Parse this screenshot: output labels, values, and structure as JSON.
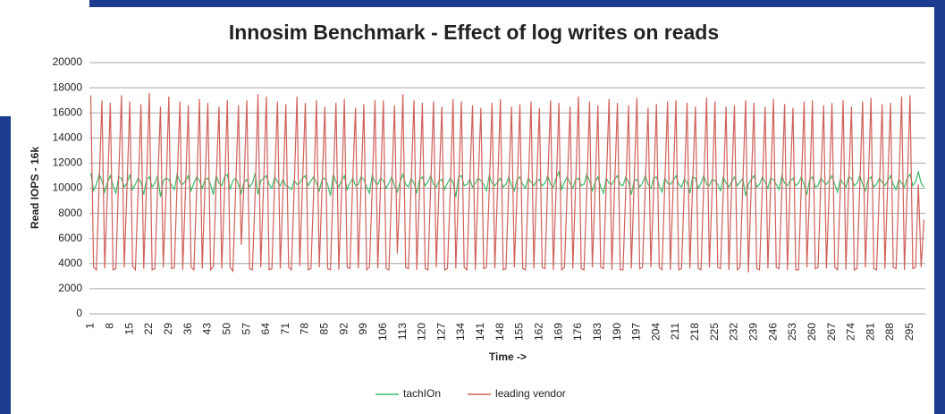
{
  "chart_data": {
    "type": "line",
    "title": "Innosim Benchmark - Effect of log writes on reads",
    "x_label": "Time ->",
    "y_label": "Read IOPS - 16k",
    "ylim": [
      0,
      20000
    ],
    "yticks": [
      0,
      2000,
      4000,
      6000,
      8000,
      10000,
      12000,
      14000,
      16000,
      18000,
      20000
    ],
    "grid": true,
    "legend": "bottom",
    "categories": [
      "1",
      null,
      null,
      null,
      null,
      null,
      null,
      "8",
      null,
      null,
      null,
      null,
      null,
      null,
      "15",
      null,
      null,
      null,
      null,
      null,
      null,
      "22",
      null,
      null,
      null,
      null,
      null,
      null,
      "29",
      null,
      null,
      null,
      null,
      null,
      null,
      "36",
      null,
      null,
      null,
      null,
      null,
      null,
      "43",
      null,
      null,
      null,
      null,
      null,
      null,
      "50",
      null,
      null,
      null,
      null,
      null,
      null,
      "57",
      null,
      null,
      null,
      null,
      null,
      null,
      "64",
      null,
      null,
      null,
      null,
      null,
      null,
      "71",
      null,
      null,
      null,
      null,
      null,
      null,
      "78",
      null,
      null,
      null,
      null,
      null,
      null,
      "85",
      null,
      null,
      null,
      null,
      null,
      null,
      "92",
      null,
      null,
      null,
      null,
      null,
      null,
      "99",
      null,
      null,
      null,
      null,
      null,
      null,
      "106",
      null,
      null,
      null,
      null,
      null,
      null,
      "113",
      null,
      null,
      null,
      null,
      null,
      null,
      "120",
      null,
      null,
      null,
      null,
      null,
      null,
      "127",
      null,
      null,
      null,
      null,
      null,
      null,
      "134",
      null,
      null,
      null,
      null,
      null,
      null,
      "141",
      null,
      null,
      null,
      null,
      null,
      null,
      "148",
      null,
      null,
      null,
      null,
      null,
      null,
      "155",
      null,
      null,
      null,
      null,
      null,
      null,
      "162",
      null,
      null,
      null,
      null,
      null,
      null,
      "169",
      null,
      null,
      null,
      null,
      null,
      null,
      "176",
      null,
      null,
      null,
      null,
      null,
      null,
      "183",
      null,
      null,
      null,
      null,
      null,
      null,
      "190",
      null,
      null,
      null,
      null,
      null,
      null,
      "197",
      null,
      null,
      null,
      null,
      null,
      null,
      "204",
      null,
      null,
      null,
      null,
      null,
      null,
      "211",
      null,
      null,
      null,
      null,
      null,
      null,
      "218",
      null,
      null,
      null,
      null,
      null,
      null,
      "225",
      null,
      null,
      null,
      null,
      null,
      null,
      "232",
      null,
      null,
      null,
      null,
      null,
      null,
      "239",
      null,
      null,
      null,
      null,
      null,
      null,
      "246",
      null,
      null,
      null,
      null,
      null,
      null,
      "253",
      null,
      null,
      null,
      null,
      null,
      null,
      "260",
      null,
      null,
      null,
      null,
      null,
      null,
      "267",
      null,
      null,
      null,
      null,
      null,
      null,
      "274",
      null,
      null,
      null,
      null,
      null,
      null,
      "281",
      null,
      null,
      null,
      null,
      null,
      null,
      "288",
      null,
      null,
      null,
      null,
      null,
      null,
      "295",
      null,
      null,
      null,
      null,
      null
    ],
    "series": [
      {
        "name": "tachIOn",
        "color": "#3dbb6a",
        "values": [
          11200,
          9800,
          10300,
          11100,
          10600,
          9700,
          10500,
          11000,
          10200,
          9600,
          10900,
          10800,
          10100,
          10400,
          11100,
          9900,
          10300,
          10800,
          10500,
          9500,
          10700,
          10900,
          10100,
          10400,
          11000,
          9300,
          10600,
          10800,
          10700,
          10200,
          9900,
          11100,
          10500,
          10300,
          10600,
          11000,
          9800,
          10400,
          10900,
          10600,
          10000,
          10700,
          10800,
          10300,
          9500,
          11000,
          10400,
          10200,
          10900,
          11100,
          9900,
          10600,
          10800,
          10300,
          9600,
          10500,
          10700,
          10100,
          10400,
          11200,
          9500,
          10600,
          10800,
          11000,
          10300,
          10000,
          10900,
          10500,
          10200,
          10700,
          10200,
          10100,
          9900,
          10600,
          10300,
          10400,
          10800,
          11000,
          10200,
          10600,
          10900,
          10400,
          9800,
          10700,
          10800,
          10300,
          9400,
          11100,
          10500,
          10100,
          10600,
          11000,
          9900,
          10400,
          10800,
          10200,
          10300,
          10900,
          10700,
          10100,
          9600,
          11000,
          10500,
          10300,
          10800,
          10600,
          10000,
          10400,
          10900,
          10200,
          9700,
          10500,
          11100,
          10300,
          10100,
          10800,
          10400,
          9600,
          10700,
          10900,
          10200,
          10500,
          11000,
          10300,
          10100,
          10600,
          10700,
          9900,
          10400,
          10800,
          10500,
          9300,
          10900,
          11000,
          10200,
          10300,
          10700,
          10100,
          10400,
          10800,
          10600,
          10300,
          9800,
          11000,
          10400,
          10200,
          10500,
          10800,
          10100,
          10300,
          10900,
          10200,
          9800,
          10700,
          10900,
          10300,
          10000,
          10800,
          10500,
          10200,
          10600,
          10700,
          10200,
          10400,
          11000,
          10300,
          10100,
          10800,
          11300,
          9900,
          10500,
          10900,
          10400,
          10000,
          10700,
          10800,
          10200,
          10300,
          11100,
          10600,
          9800,
          10500,
          10900,
          10100,
          9600,
          10800,
          10400,
          10300,
          10700,
          11000,
          10300,
          10200,
          10900,
          10500,
          9500,
          10600,
          10700,
          10100,
          10400,
          11000,
          10300,
          10000,
          10800,
          10900,
          10200,
          9700,
          10800,
          10400,
          10300,
          10600,
          11000,
          10300,
          10100,
          10700,
          10500,
          9600,
          10900,
          10800,
          10000,
          10400,
          11000,
          10300,
          10200,
          10700,
          10600,
          10300,
          9800,
          10900,
          10400,
          10100,
          10500,
          10900,
          10200,
          10500,
          10800,
          9400,
          10300,
          10700,
          11000,
          10100,
          10300,
          10900,
          10500,
          10000,
          10800,
          10700,
          10300,
          9900,
          11000,
          10400,
          10200,
          10600,
          10800,
          10200,
          10400,
          10900,
          10300,
          9500,
          10700,
          10900,
          10100,
          10200,
          10800,
          10500,
          10300,
          10600,
          11000,
          10300,
          9700,
          10700,
          10400,
          10100,
          10900,
          10800,
          10200,
          10400,
          11000,
          10300,
          9800,
          10700,
          10900,
          10100,
          10300,
          10800,
          10500,
          10200,
          10600,
          11000,
          10300,
          9900,
          10700,
          10400,
          10100,
          10800,
          11100,
          10200,
          10500,
          11300,
          10400,
          10100
        ]
      },
      {
        "name": "leading vendor",
        "color": "#d0605a",
        "values": [
          17400,
          3700,
          3500,
          10300,
          17000,
          3600,
          9900,
          16800,
          3500,
          3600,
          10800,
          17400,
          3700,
          10100,
          16900,
          3800,
          3500,
          9800,
          16700,
          3600,
          10400,
          17600,
          3500,
          3600,
          10200,
          16500,
          3700,
          9700,
          17300,
          3600,
          3700,
          10600,
          16900,
          3500,
          10000,
          16600,
          3700,
          3500,
          9900,
          17100,
          3600,
          10300,
          16800,
          3500,
          3800,
          10500,
          16500,
          3600,
          9800,
          17000,
          3700,
          3400,
          10100,
          16600,
          5500,
          10400,
          17000,
          3600,
          3500,
          9600,
          17500,
          3700,
          10200,
          17300,
          3500,
          3600,
          10700,
          16900,
          3600,
          9900,
          16700,
          3700,
          3500,
          10000,
          17300,
          3800,
          10500,
          16800,
          3500,
          3600,
          9800,
          17000,
          3700,
          10100,
          16500,
          3600,
          3500,
          10300,
          16800,
          3500,
          9700,
          17100,
          3700,
          3600,
          10600,
          16400,
          3600,
          10200,
          16700,
          3500,
          3700,
          9900,
          17000,
          3600,
          10400,
          17000,
          3600,
          3500,
          10100,
          16600,
          4800,
          10000,
          17500,
          3700,
          3600,
          10500,
          17000,
          3500,
          9800,
          16800,
          3600,
          3500,
          10200,
          16900,
          3700,
          10300,
          16500,
          3500,
          3600,
          9700,
          17100,
          3600,
          10000,
          16900,
          3700,
          3500,
          10400,
          16600,
          3500,
          10200,
          16400,
          3600,
          3700,
          9900,
          16800,
          3600,
          10100,
          17100,
          3500,
          3600,
          10300,
          16500,
          3700,
          9800,
          16700,
          3600,
          3500,
          10000,
          16900,
          3600,
          10400,
          16400,
          3700,
          3600,
          10600,
          17000,
          3500,
          9900,
          16800,
          3500,
          3700,
          10100,
          16500,
          3600,
          10300,
          17300,
          3600,
          3500,
          9800,
          16900,
          3700,
          10000,
          16600,
          3700,
          3600,
          10400,
          17100,
          3500,
          10200,
          16800,
          3500,
          3500,
          9900,
          16600,
          3600,
          10500,
          17200,
          3600,
          3700,
          10200,
          16400,
          3700,
          9800,
          16700,
          3700,
          3500,
          10300,
          16900,
          3500,
          10100,
          17000,
          3500,
          3600,
          10000,
          16800,
          3600,
          10400,
          16500,
          3600,
          3500,
          10500,
          17200,
          3700,
          9900,
          16900,
          3700,
          3600,
          9800,
          16500,
          3500,
          10200,
          16600,
          3500,
          3700,
          10300,
          17000,
          3300,
          10000,
          16800,
          3600,
          3500,
          10100,
          16500,
          3600,
          10300,
          17100,
          3700,
          3600,
          9700,
          16700,
          3500,
          10400,
          16400,
          3500,
          3500,
          10200,
          16900,
          3700,
          10000,
          17000,
          3600,
          3700,
          10500,
          16600,
          3600,
          9800,
          16800,
          3700,
          3500,
          10000,
          17000,
          3500,
          10300,
          16500,
          3500,
          3600,
          10300,
          16900,
          3700,
          10100,
          17200,
          3600,
          3500,
          9900,
          16700,
          3600,
          10400,
          16800,
          3700,
          3600,
          10200,
          17300,
          3500,
          10000,
          17400,
          3600,
          3700,
          10300,
          3700,
          7500
        ]
      }
    ]
  }
}
